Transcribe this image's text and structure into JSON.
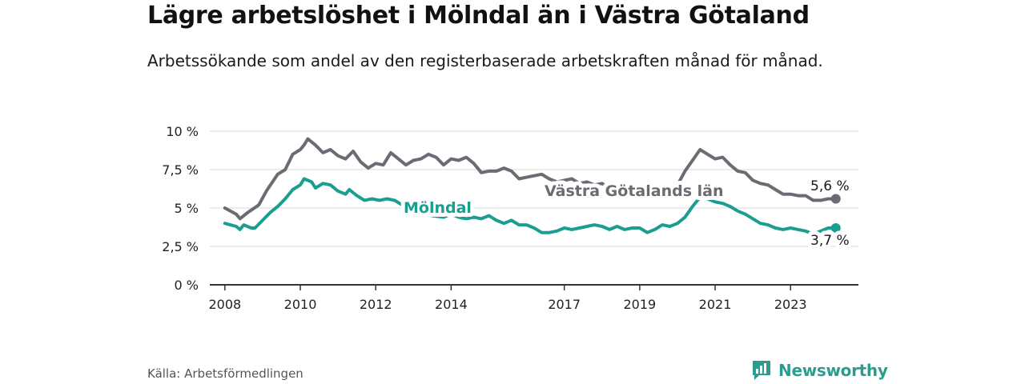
{
  "header": {
    "title": "Lägre arbetslöshet i Mölndal än i Västra Götaland",
    "subtitle": "Arbetssökande som andel av den registerbaserade arbetskraften månad för månad."
  },
  "footer": {
    "source": "Källa: Arbetsförmedlingen",
    "brand": "Newsworthy"
  },
  "colors": {
    "molndal": "#1a9e8f",
    "vastra": "#6b6b73",
    "grid": "#d9d9d9",
    "axis": "#333333",
    "brand": "#2a9d8f"
  },
  "chart_data": {
    "type": "line",
    "title": "Lägre arbetslöshet i Mölndal än i Västra Götaland",
    "xlabel": "",
    "ylabel": "",
    "xlim": [
      2007.6,
      2024.8
    ],
    "ylim": [
      0,
      10
    ],
    "y_ticks": [
      0,
      2.5,
      5,
      7.5,
      10
    ],
    "y_tick_labels": [
      "0 %",
      "2,5 %",
      "5 %",
      "7,5 %",
      "10 %"
    ],
    "x_ticks": [
      2008,
      2010,
      2012,
      2014,
      2017,
      2019,
      2021,
      2023
    ],
    "x_tick_labels": [
      "2008",
      "2010",
      "2012",
      "2014",
      "2017",
      "2019",
      "2021",
      "2023"
    ],
    "grid": true,
    "series": [
      {
        "name": "Västra Götalands län",
        "end_label": "5,6 %",
        "points": [
          [
            2008.0,
            5.0
          ],
          [
            2008.3,
            4.6
          ],
          [
            2008.4,
            4.3
          ],
          [
            2008.6,
            4.7
          ],
          [
            2008.9,
            5.2
          ],
          [
            2009.1,
            6.1
          ],
          [
            2009.4,
            7.2
          ],
          [
            2009.6,
            7.5
          ],
          [
            2009.8,
            8.5
          ],
          [
            2010.0,
            8.8
          ],
          [
            2010.1,
            9.1
          ],
          [
            2010.2,
            9.5
          ],
          [
            2010.4,
            9.1
          ],
          [
            2010.6,
            8.6
          ],
          [
            2010.8,
            8.8
          ],
          [
            2011.0,
            8.4
          ],
          [
            2011.2,
            8.2
          ],
          [
            2011.4,
            8.7
          ],
          [
            2011.6,
            8.0
          ],
          [
            2011.8,
            7.6
          ],
          [
            2012.0,
            7.9
          ],
          [
            2012.2,
            7.8
          ],
          [
            2012.4,
            8.6
          ],
          [
            2012.6,
            8.2
          ],
          [
            2012.8,
            7.8
          ],
          [
            2013.0,
            8.1
          ],
          [
            2013.2,
            8.2
          ],
          [
            2013.4,
            8.5
          ],
          [
            2013.6,
            8.3
          ],
          [
            2013.8,
            7.8
          ],
          [
            2014.0,
            8.2
          ],
          [
            2014.2,
            8.1
          ],
          [
            2014.4,
            8.3
          ],
          [
            2014.6,
            7.9
          ],
          [
            2014.8,
            7.3
          ],
          [
            2015.0,
            7.4
          ],
          [
            2015.2,
            7.4
          ],
          [
            2015.4,
            7.6
          ],
          [
            2015.6,
            7.4
          ],
          [
            2015.8,
            6.9
          ],
          [
            2016.0,
            7.0
          ],
          [
            2016.2,
            7.1
          ],
          [
            2016.4,
            7.2
          ],
          [
            2016.6,
            6.9
          ],
          [
            2016.8,
            6.7
          ],
          [
            2017.0,
            6.8
          ],
          [
            2017.2,
            6.9
          ],
          [
            2017.4,
            6.6
          ],
          [
            2017.6,
            6.7
          ],
          [
            2017.8,
            6.5
          ],
          [
            2018.0,
            6.6
          ],
          [
            2018.2,
            6.3
          ],
          [
            2018.4,
            6.5
          ],
          [
            2018.6,
            6.4
          ],
          [
            2018.8,
            6.3
          ],
          [
            2019.0,
            6.5
          ],
          [
            2019.2,
            6.2
          ],
          [
            2019.4,
            6.4
          ],
          [
            2019.6,
            6.1
          ],
          [
            2019.8,
            6.0
          ],
          [
            2020.0,
            6.5
          ],
          [
            2020.2,
            7.4
          ],
          [
            2020.4,
            8.1
          ],
          [
            2020.6,
            8.8
          ],
          [
            2020.8,
            8.5
          ],
          [
            2021.0,
            8.2
          ],
          [
            2021.2,
            8.3
          ],
          [
            2021.4,
            7.8
          ],
          [
            2021.6,
            7.4
          ],
          [
            2021.8,
            7.3
          ],
          [
            2022.0,
            6.8
          ],
          [
            2022.2,
            6.6
          ],
          [
            2022.4,
            6.5
          ],
          [
            2022.6,
            6.2
          ],
          [
            2022.8,
            5.9
          ],
          [
            2023.0,
            5.9
          ],
          [
            2023.2,
            5.8
          ],
          [
            2023.4,
            5.8
          ],
          [
            2023.6,
            5.5
          ],
          [
            2023.8,
            5.5
          ],
          [
            2024.0,
            5.6
          ],
          [
            2024.2,
            5.6
          ]
        ]
      },
      {
        "name": "Mölndal",
        "end_label": "3,7 %",
        "points": [
          [
            2008.0,
            4.0
          ],
          [
            2008.3,
            3.8
          ],
          [
            2008.4,
            3.6
          ],
          [
            2008.5,
            3.9
          ],
          [
            2008.7,
            3.7
          ],
          [
            2008.8,
            3.7
          ],
          [
            2009.0,
            4.2
          ],
          [
            2009.2,
            4.7
          ],
          [
            2009.4,
            5.1
          ],
          [
            2009.6,
            5.6
          ],
          [
            2009.8,
            6.2
          ],
          [
            2010.0,
            6.5
          ],
          [
            2010.1,
            6.9
          ],
          [
            2010.3,
            6.7
          ],
          [
            2010.4,
            6.3
          ],
          [
            2010.6,
            6.6
          ],
          [
            2010.8,
            6.5
          ],
          [
            2011.0,
            6.1
          ],
          [
            2011.2,
            5.9
          ],
          [
            2011.3,
            6.2
          ],
          [
            2011.5,
            5.8
          ],
          [
            2011.7,
            5.5
          ],
          [
            2011.9,
            5.6
          ],
          [
            2012.1,
            5.5
          ],
          [
            2012.3,
            5.6
          ],
          [
            2012.5,
            5.5
          ],
          [
            2012.7,
            5.2
          ],
          [
            2012.9,
            5.0
          ],
          [
            2013.2,
            4.7
          ],
          [
            2013.5,
            4.5
          ],
          [
            2013.8,
            4.4
          ],
          [
            2014.0,
            4.6
          ],
          [
            2014.2,
            4.4
          ],
          [
            2014.4,
            4.3
          ],
          [
            2014.6,
            4.4
          ],
          [
            2014.8,
            4.3
          ],
          [
            2015.0,
            4.5
          ],
          [
            2015.2,
            4.2
          ],
          [
            2015.4,
            4.0
          ],
          [
            2015.6,
            4.2
          ],
          [
            2015.8,
            3.9
          ],
          [
            2016.0,
            3.9
          ],
          [
            2016.2,
            3.7
          ],
          [
            2016.4,
            3.4
          ],
          [
            2016.6,
            3.4
          ],
          [
            2016.8,
            3.5
          ],
          [
            2017.0,
            3.7
          ],
          [
            2017.2,
            3.6
          ],
          [
            2017.4,
            3.7
          ],
          [
            2017.6,
            3.8
          ],
          [
            2017.8,
            3.9
          ],
          [
            2018.0,
            3.8
          ],
          [
            2018.2,
            3.6
          ],
          [
            2018.4,
            3.8
          ],
          [
            2018.6,
            3.6
          ],
          [
            2018.8,
            3.7
          ],
          [
            2019.0,
            3.7
          ],
          [
            2019.2,
            3.4
          ],
          [
            2019.4,
            3.6
          ],
          [
            2019.6,
            3.9
          ],
          [
            2019.8,
            3.8
          ],
          [
            2020.0,
            4.0
          ],
          [
            2020.2,
            4.4
          ],
          [
            2020.4,
            5.1
          ],
          [
            2020.6,
            5.7
          ],
          [
            2020.8,
            5.6
          ],
          [
            2021.0,
            5.4
          ],
          [
            2021.2,
            5.3
          ],
          [
            2021.4,
            5.1
          ],
          [
            2021.6,
            4.8
          ],
          [
            2021.8,
            4.6
          ],
          [
            2022.0,
            4.3
          ],
          [
            2022.2,
            4.0
          ],
          [
            2022.4,
            3.9
          ],
          [
            2022.6,
            3.7
          ],
          [
            2022.8,
            3.6
          ],
          [
            2023.0,
            3.7
          ],
          [
            2023.2,
            3.6
          ],
          [
            2023.4,
            3.5
          ],
          [
            2023.6,
            3.3
          ],
          [
            2023.8,
            3.5
          ],
          [
            2024.0,
            3.7
          ],
          [
            2024.2,
            3.7
          ]
        ]
      }
    ]
  }
}
